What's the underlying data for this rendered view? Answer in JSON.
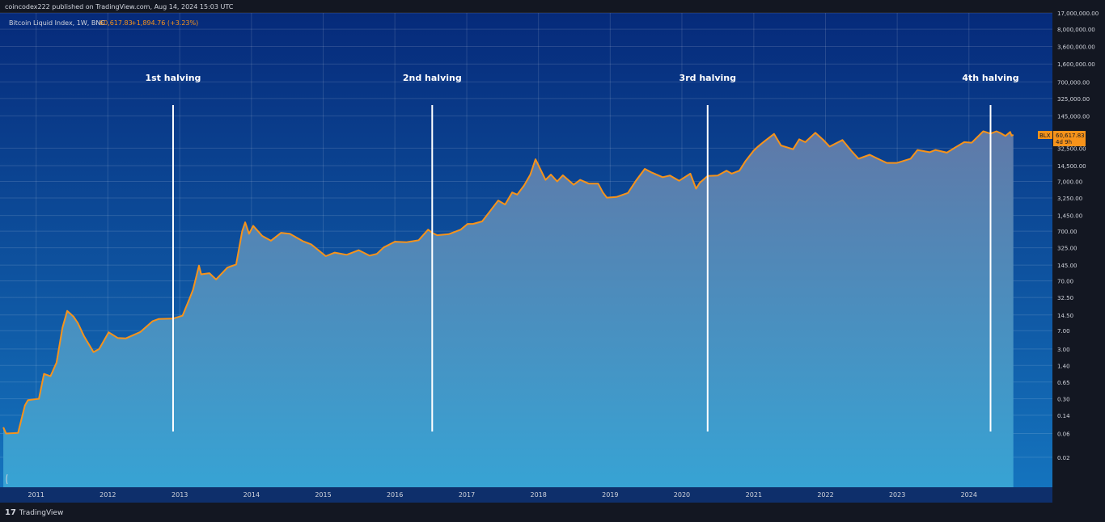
{
  "header": {
    "published": "coincodex222 published on TradingView.com, Aug 14, 2024 15:03 UTC"
  },
  "footer": {
    "brand": "TradingView",
    "logo_glyph": "17"
  },
  "legend": {
    "symbol": "Bitcoin Liquid Index, 1W, BNC",
    "price": "60,617.83",
    "change": "+1,894.76 (+3.23%)"
  },
  "price_tag": {
    "label": "BLX",
    "value": "60,617.83",
    "countdown": "4d 9h"
  },
  "colors": {
    "line": "#f7931a",
    "background_top": "#062a7a",
    "background_bottom": "#1576c0",
    "area_top": "#5f79a8",
    "area_bottom": "#37a3d4",
    "halving_line": "#ffffff",
    "text": "#d1d4dc"
  },
  "chart_data": {
    "type": "area",
    "title": "",
    "xlabel": "",
    "ylabel": "",
    "y_scale": "log",
    "xlim": [
      "2010-07-01",
      "2025-03-01"
    ],
    "ylim": [
      0.005,
      17000000
    ],
    "grid": true,
    "x_tick_labels": [
      "2011",
      "2012",
      "2013",
      "2014",
      "2015",
      "2016",
      "2017",
      "2018",
      "2019",
      "2020",
      "2021",
      "2022",
      "2023",
      "2024"
    ],
    "y_tick_labels": [
      "17,000,000.00",
      "8,000,000.00",
      "3,600,000.00",
      "1,600,000.00",
      "700,000.00",
      "325,000.00",
      "145,000.00",
      "32,500.00",
      "14,500.00",
      "7,000.00",
      "3,250.00",
      "1,450.00",
      "700.00",
      "325.00",
      "145.00",
      "70.00",
      "32.50",
      "14.50",
      "7.00",
      "3.00",
      "1.40",
      "0.65",
      "0.30",
      "0.14",
      "0.06",
      "0.02"
    ],
    "y_tick_values": [
      17000000,
      8000000,
      3600000,
      1600000,
      700000,
      325000,
      145000,
      32500,
      14500,
      7000,
      3250,
      1450,
      700,
      325,
      145,
      70,
      32.5,
      14.5,
      7,
      3,
      1.4,
      0.65,
      0.3,
      0.14,
      0.06,
      0.02
    ],
    "series": [
      {
        "x": [
          "2010-07-18",
          "2010-08-01",
          "2010-10-01",
          "2010-11-05",
          "2010-11-20",
          "2011-01-15",
          "2011-02-10",
          "2011-03-15",
          "2011-04-15",
          "2011-05-15",
          "2011-06-08",
          "2011-07-10",
          "2011-08-01",
          "2011-09-01",
          "2011-10-20",
          "2011-11-18",
          "2012-01-05",
          "2012-02-20",
          "2012-04-01",
          "2012-06-15",
          "2012-08-15",
          "2012-09-15",
          "2012-11-28",
          "2013-01-15",
          "2013-02-20",
          "2013-03-10",
          "2013-04-09",
          "2013-04-20",
          "2013-06-01",
          "2013-07-05",
          "2013-09-01",
          "2013-10-15",
          "2013-11-15",
          "2013-11-30",
          "2013-12-20",
          "2014-01-10",
          "2014-02-25",
          "2014-04-10",
          "2014-06-01",
          "2014-07-15",
          "2014-09-20",
          "2014-11-01",
          "2015-01-14",
          "2015-03-01",
          "2015-05-01",
          "2015-07-01",
          "2015-08-25",
          "2015-10-01",
          "2015-11-05",
          "2016-01-01",
          "2016-03-01",
          "2016-05-01",
          "2016-06-18",
          "2016-07-09",
          "2016-08-03",
          "2016-10-01",
          "2016-12-01",
          "2017-01-05",
          "2017-02-01",
          "2017-03-20",
          "2017-05-01",
          "2017-06-10",
          "2017-07-15",
          "2017-08-20",
          "2017-09-15",
          "2017-10-20",
          "2017-11-20",
          "2017-12-17",
          "2018-02-06",
          "2018-03-05",
          "2018-04-06",
          "2018-05-05",
          "2018-06-29",
          "2018-08-01",
          "2018-09-15",
          "2018-11-01",
          "2018-11-25",
          "2018-12-15",
          "2019-02-01",
          "2019-04-01",
          "2019-05-15",
          "2019-06-26",
          "2019-08-01",
          "2019-09-25",
          "2019-11-01",
          "2019-12-18",
          "2020-02-13",
          "2020-03-13",
          "2020-04-01",
          "2020-05-11",
          "2020-07-01",
          "2020-08-15",
          "2020-09-10",
          "2020-10-20",
          "2020-11-20",
          "2020-12-31",
          "2021-01-20",
          "2021-02-25",
          "2021-04-14",
          "2021-05-19",
          "2021-07-20",
          "2021-08-20",
          "2021-09-20",
          "2021-11-10",
          "2021-12-20",
          "2022-01-22",
          "2022-03-28",
          "2022-05-12",
          "2022-06-18",
          "2022-08-14",
          "2022-09-30",
          "2022-11-09",
          "2022-12-31",
          "2023-03-10",
          "2023-04-14",
          "2023-06-15",
          "2023-07-15",
          "2023-09-11",
          "2023-10-25",
          "2023-12-08",
          "2024-01-15",
          "2024-03-14",
          "2024-04-20",
          "2024-05-20",
          "2024-06-10",
          "2024-07-05",
          "2024-07-29",
          "2024-08-05",
          "2024-08-14"
        ],
        "values": [
          0.08,
          0.06,
          0.062,
          0.22,
          0.28,
          0.3,
          0.95,
          0.85,
          1.6,
          8,
          17.5,
          13.5,
          10,
          5.5,
          2.6,
          3,
          6.5,
          5,
          4.9,
          6.6,
          10.8,
          12,
          12.3,
          14,
          31,
          47,
          142,
          95,
          100,
          75,
          130,
          150,
          700,
          1050,
          620,
          900,
          560,
          450,
          650,
          620,
          440,
          380,
          220,
          260,
          235,
          290,
          225,
          245,
          330,
          430,
          420,
          460,
          750,
          650,
          580,
          610,
          750,
          980,
          980,
          1100,
          1800,
          2900,
          2400,
          4200,
          3800,
          5800,
          9500,
          19500,
          7500,
          9600,
          7000,
          9300,
          6000,
          7500,
          6300,
          6300,
          4200,
          3300,
          3400,
          4100,
          7500,
          12500,
          10500,
          8500,
          9200,
          7200,
          10000,
          5000,
          6600,
          9000,
          9200,
          11500,
          10000,
          11500,
          18000,
          29000,
          34500,
          45000,
          63000,
          37000,
          31000,
          49000,
          43000,
          66500,
          48000,
          35000,
          47500,
          29000,
          20000,
          24000,
          19500,
          16500,
          16500,
          20000,
          30000,
          27000,
          30000,
          26500,
          34000,
          43000,
          42000,
          71000,
          64000,
          71000,
          65500,
          57500,
          69000,
          58000,
          60617.83
        ]
      }
    ],
    "annotations": [
      {
        "label": "1st halving",
        "date": "2012-11-28"
      },
      {
        "label": "2nd halving",
        "date": "2016-07-09"
      },
      {
        "label": "3rd halving",
        "date": "2020-05-11"
      },
      {
        "label": "4th halving",
        "date": "2024-04-20"
      }
    ]
  }
}
